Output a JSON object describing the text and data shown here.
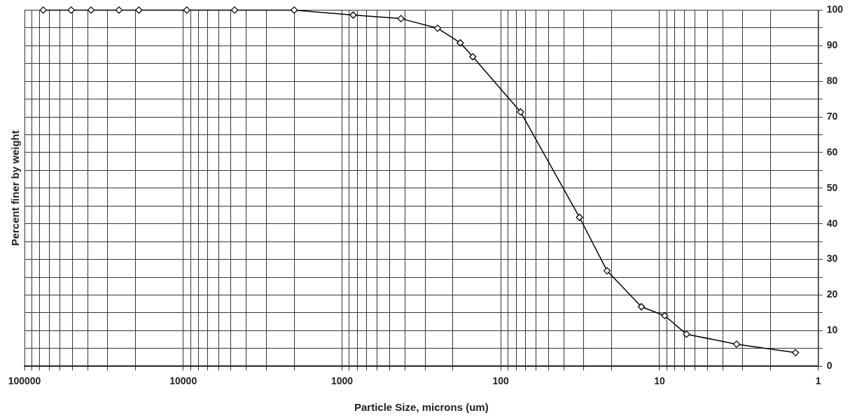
{
  "chart_data": {
    "type": "line",
    "xlabel": "Particle Size, microns (um)",
    "ylabel": "Percent finer by weight",
    "x": [
      76200,
      50800,
      38100,
      25400,
      19050,
      9500,
      4750,
      2000,
      850,
      425,
      250,
      180,
      150,
      75,
      31.9,
      21.4,
      13,
      9.27,
      6.76,
      3.27,
      1.39
    ],
    "series": [
      {
        "color": "#000000",
        "values": [
          100,
          100,
          100,
          100,
          100,
          100,
          100,
          100,
          98.6,
          97.6,
          94.9,
          90.8,
          86.9,
          71.4,
          41.8,
          26.8,
          16.7,
          14.2,
          9,
          6.2,
          3.8
        ]
      }
    ],
    "log": "x",
    "xlim": [
      100000,
      1
    ],
    "xticks": [
      100000,
      {
        "value": 90000,
        "label": null
      },
      {
        "value": 80000,
        "label": null
      },
      {
        "value": 70000,
        "label": null
      },
      {
        "value": 60000,
        "label": null
      },
      {
        "value": 50000,
        "label": null
      },
      {
        "value": 40000,
        "label": null
      },
      {
        "value": 30000,
        "label": null
      },
      {
        "value": 20000,
        "label": null
      },
      10000,
      {
        "value": 9000,
        "label": null
      },
      {
        "value": 8000,
        "label": null
      },
      {
        "value": 7000,
        "label": null
      },
      {
        "value": 6000,
        "label": null
      },
      {
        "value": 5000,
        "label": null
      },
      {
        "value": 4000,
        "label": null
      },
      {
        "value": 3000,
        "label": null
      },
      {
        "value": 2000,
        "label": null
      },
      1000,
      {
        "value": 900,
        "label": null
      },
      {
        "value": 800,
        "label": null
      },
      {
        "value": 700,
        "label": null
      },
      {
        "value": 600,
        "label": null
      },
      {
        "value": 500,
        "label": null
      },
      {
        "value": 400,
        "label": null
      },
      {
        "value": 300,
        "label": null
      },
      {
        "value": 200,
        "label": null
      },
      100,
      {
        "value": 90,
        "label": null
      },
      {
        "value": 80,
        "label": null
      },
      {
        "value": 70,
        "label": null
      },
      {
        "value": 60,
        "label": null
      },
      {
        "value": 50,
        "label": null
      },
      {
        "value": 40,
        "label": null
      },
      {
        "value": 30,
        "label": null
      },
      {
        "value": 20,
        "label": null
      },
      10,
      {
        "value": 9,
        "label": null
      },
      {
        "value": 8,
        "label": null
      },
      {
        "value": 7,
        "label": null
      },
      {
        "value": 6,
        "label": null
      },
      {
        "value": 5,
        "label": null
      },
      {
        "value": 4,
        "label": null
      },
      {
        "value": 3,
        "label": null
      },
      {
        "value": 2,
        "label": null
      },
      1
    ],
    "ylim": [
      0,
      100
    ],
    "yticks": [
      0,
      {
        "value": 5,
        "label": null
      },
      10,
      {
        "value": 15,
        "label": null
      },
      20,
      {
        "value": 25,
        "label": null
      },
      30,
      {
        "value": 35,
        "label": null
      },
      40,
      {
        "value": 45,
        "label": null
      },
      50,
      {
        "value": 55,
        "label": null
      },
      60,
      {
        "value": 65,
        "label": null
      },
      70,
      {
        "value": 75,
        "label": null
      },
      80,
      {
        "value": 85,
        "label": null
      },
      90,
      {
        "value": 95,
        "label": null
      },
      100
    ],
    "grid": true,
    "legend": false,
    "marker": "diamond",
    "line_style": "solid"
  }
}
